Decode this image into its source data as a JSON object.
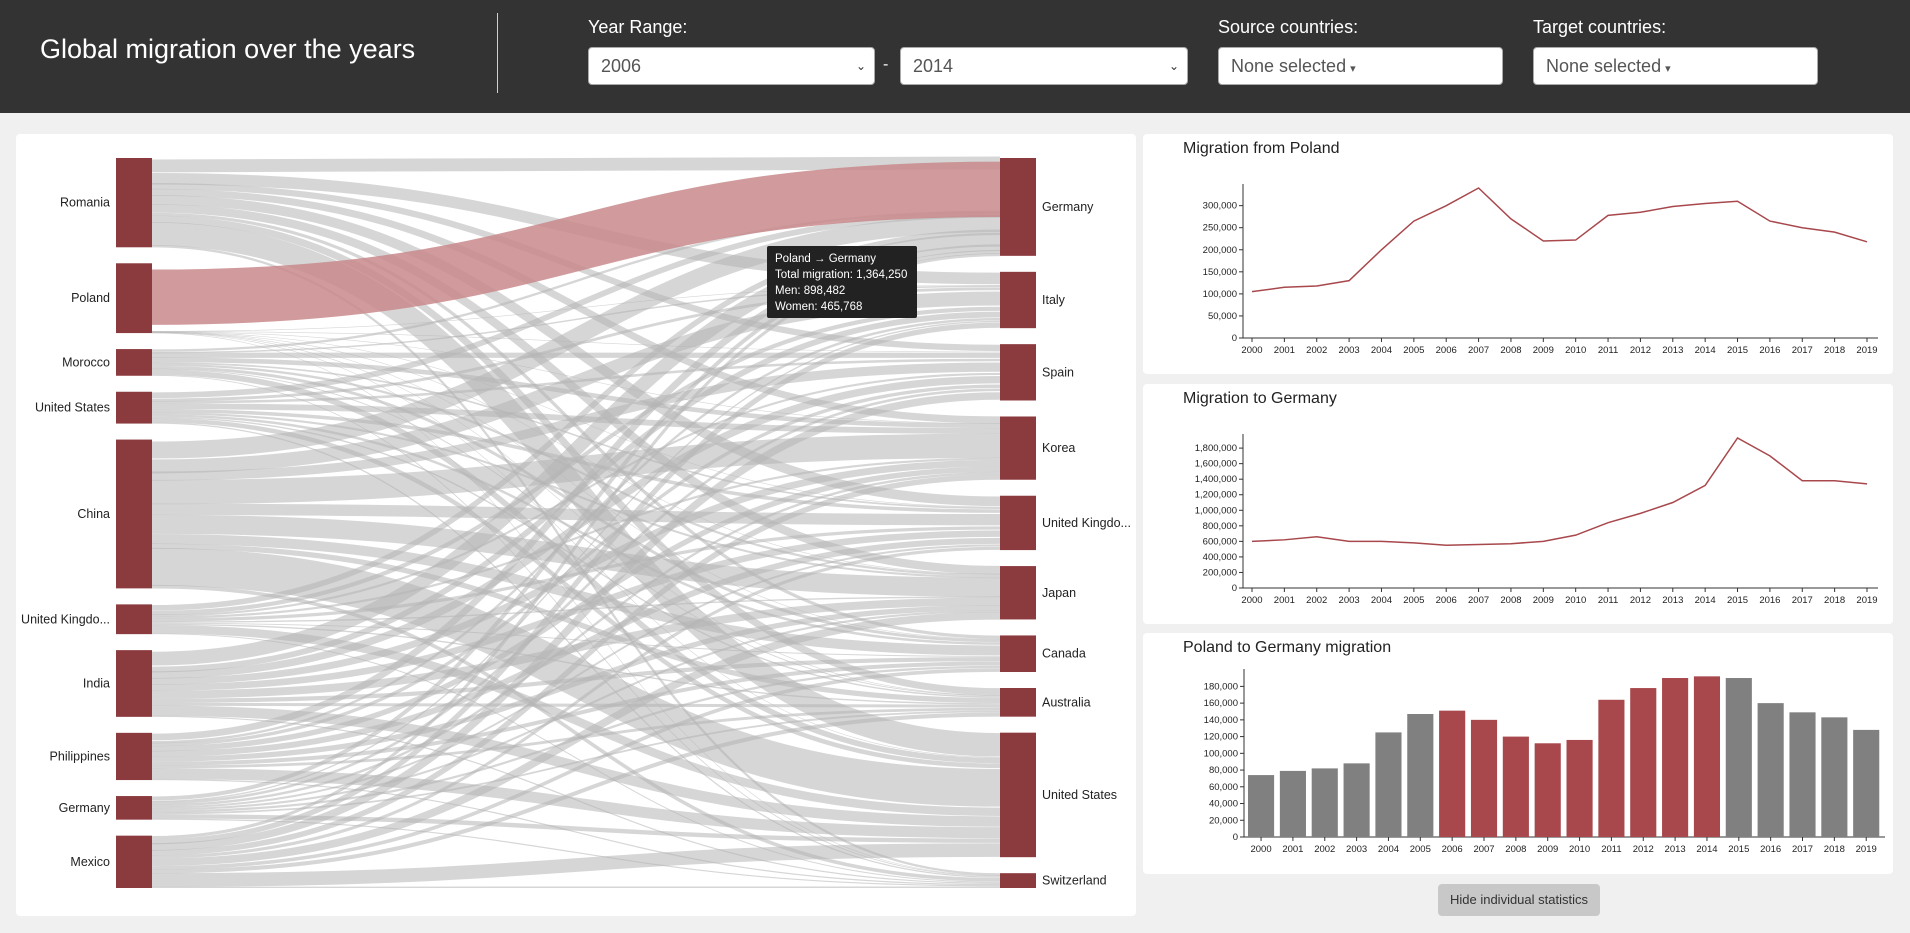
{
  "header": {
    "title": "Global migration over the years",
    "year_range_label": "Year Range:",
    "year_from": "2006",
    "year_to": "2014",
    "range_separator": "-",
    "source_label": "Source countries:",
    "source_value": "None selected",
    "target_label": "Target countries:",
    "target_value": "None selected"
  },
  "sankey": {
    "sources": [
      {
        "name": "Romania",
        "value": 870000
      },
      {
        "name": "Poland",
        "value": 680000
      },
      {
        "name": "Morocco",
        "value": 260000
      },
      {
        "name": "United States",
        "value": 310000
      },
      {
        "name": "China",
        "value": 1450000
      },
      {
        "name": "United Kingdo...",
        "value": 290000
      },
      {
        "name": "India",
        "value": 650000
      },
      {
        "name": "Philippines",
        "value": 460000
      },
      {
        "name": "Germany",
        "value": 230000
      },
      {
        "name": "Mexico",
        "value": 510000
      }
    ],
    "targets": [
      {
        "name": "Germany",
        "value": 990000
      },
      {
        "name": "Italy",
        "value": 570000
      },
      {
        "name": "Spain",
        "value": 570000
      },
      {
        "name": "Korea",
        "value": 640000
      },
      {
        "name": "United Kingdo...",
        "value": 550000
      },
      {
        "name": "Japan",
        "value": 540000
      },
      {
        "name": "Canada",
        "value": 370000
      },
      {
        "name": "Australia",
        "value": 290000
      },
      {
        "name": "United States",
        "value": 1260000
      },
      {
        "name": "Switzerland",
        "value": 150000
      }
    ],
    "highlight_link": {
      "source": "Poland",
      "target": "Germany"
    },
    "colors": {
      "node": "#8b3a3e",
      "link": "#b4b4b4",
      "highlight": "#c98a8c"
    }
  },
  "tooltip": {
    "line1": "Poland → Germany",
    "line2": "Total migration: 1,364,250",
    "line3": "Men: 898,482",
    "line4": "Women: 465,768"
  },
  "charts": {
    "from": {
      "title": "Migration from Poland",
      "chart_data": {
        "type": "line",
        "x": [
          "2000",
          "2001",
          "2002",
          "2003",
          "2004",
          "2005",
          "2006",
          "2007",
          "2008",
          "2009",
          "2010",
          "2011",
          "2012",
          "2013",
          "2014",
          "2015",
          "2016",
          "2017",
          "2018",
          "2019"
        ],
        "values": [
          105000,
          115000,
          118000,
          130000,
          200000,
          265000,
          300000,
          340000,
          270000,
          220000,
          222000,
          278000,
          285000,
          298000,
          305000,
          310000,
          265000,
          250000,
          240000,
          218000
        ],
        "yticks": [
          0,
          50000,
          100000,
          150000,
          200000,
          250000,
          300000
        ],
        "ytick_labels": [
          "0",
          "50,000",
          "100,000",
          "150,000",
          "200,000",
          "250,000",
          "300,000"
        ],
        "ylim": [
          0,
          340000
        ],
        "color": "#a8484c"
      }
    },
    "to": {
      "title": "Migration to Germany",
      "chart_data": {
        "type": "line",
        "x": [
          "2000",
          "2001",
          "2002",
          "2003",
          "2004",
          "2005",
          "2006",
          "2007",
          "2008",
          "2009",
          "2010",
          "2011",
          "2012",
          "2013",
          "2014",
          "2015",
          "2016",
          "2017",
          "2018",
          "2019"
        ],
        "values": [
          600000,
          620000,
          660000,
          600000,
          600000,
          580000,
          550000,
          560000,
          570000,
          600000,
          680000,
          840000,
          960000,
          1100000,
          1320000,
          1930000,
          1700000,
          1380000,
          1380000,
          1340000
        ],
        "yticks": [
          0,
          200000,
          400000,
          600000,
          800000,
          1000000,
          1200000,
          1400000,
          1600000,
          1800000
        ],
        "ytick_labels": [
          "0",
          "200,000",
          "400,000",
          "600,000",
          "800,000",
          "1,000,000",
          "1,200,000",
          "1,400,000",
          "1,600,000",
          "1,800,000"
        ],
        "ylim": [
          0,
          1930000
        ],
        "color": "#a8484c"
      }
    },
    "pair": {
      "title": "Poland to Germany migration",
      "chart_data": {
        "type": "bar",
        "categories": [
          "2000",
          "2001",
          "2002",
          "2003",
          "2004",
          "2005",
          "2006",
          "2007",
          "2008",
          "2009",
          "2010",
          "2011",
          "2012",
          "2013",
          "2014",
          "2015",
          "2016",
          "2017",
          "2018",
          "2019"
        ],
        "values": [
          74000,
          79000,
          82000,
          88000,
          125000,
          147000,
          151000,
          140000,
          120000,
          112000,
          116000,
          164000,
          178000,
          190000,
          192000,
          190000,
          160000,
          149000,
          143000,
          128000
        ],
        "highlighted": [
          false,
          false,
          false,
          false,
          false,
          false,
          true,
          true,
          true,
          true,
          true,
          true,
          true,
          true,
          true,
          false,
          false,
          false,
          false,
          false
        ],
        "yticks": [
          0,
          20000,
          40000,
          60000,
          80000,
          100000,
          120000,
          140000,
          160000,
          180000
        ],
        "ytick_labels": [
          "0",
          "20,000",
          "40,000",
          "60,000",
          "80,000",
          "100,000",
          "120,000",
          "140,000",
          "160,000",
          "180,000"
        ],
        "ylim": [
          0,
          196000
        ],
        "colors": {
          "normal": "#808080",
          "highlight": "#a8484c"
        }
      }
    }
  },
  "hide_button": "Hide individual statistics"
}
